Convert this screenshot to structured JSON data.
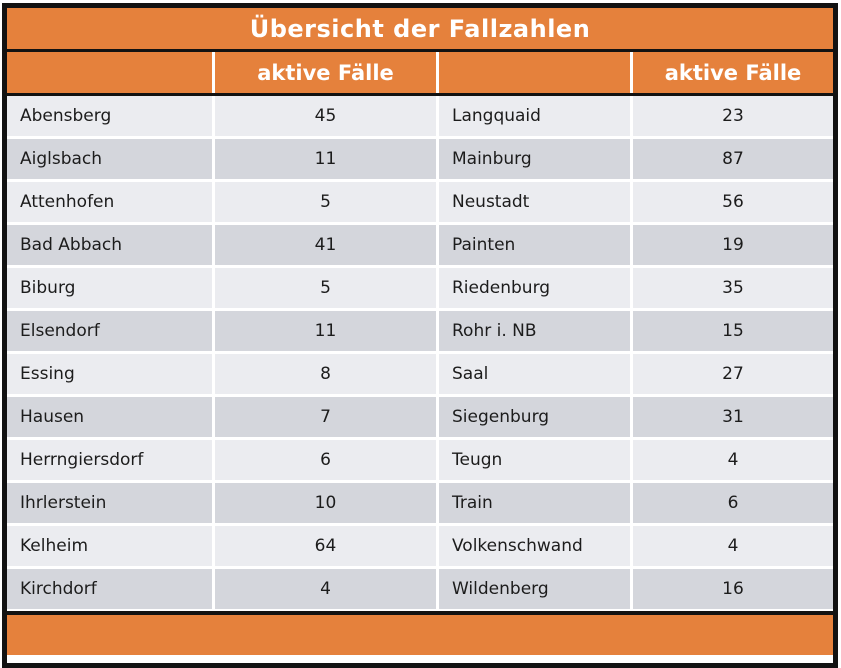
{
  "title": "Übersicht der Fallzahlen",
  "header": {
    "left_cases_label": "aktive Fälle",
    "right_cases_label": "aktive Fälle"
  },
  "colors": {
    "accent_orange": "#E5813C",
    "row_light": "#EBECF0",
    "row_dark": "#D4D6DC",
    "border_black": "#121212",
    "title_text": "#FFFFFF"
  },
  "rows": [
    [
      "Abensberg",
      "45",
      "Langquaid",
      "23"
    ],
    [
      "Aiglsbach",
      "11",
      "Mainburg",
      "87"
    ],
    [
      "Attenhofen",
      "5",
      "Neustadt",
      "56"
    ],
    [
      "Bad Abbach",
      "41",
      "Painten",
      "19"
    ],
    [
      "Biburg",
      "5",
      "Riedenburg",
      "35"
    ],
    [
      "Elsendorf",
      "11",
      "Rohr i. NB",
      "15"
    ],
    [
      "Essing",
      "8",
      "Saal",
      "27"
    ],
    [
      "Hausen",
      "7",
      "Siegenburg",
      "31"
    ],
    [
      "Herrngiersdorf",
      "6",
      "Teugn",
      "4"
    ],
    [
      "Ihrlerstein",
      "10",
      "Train",
      "6"
    ],
    [
      "Kelheim",
      "64",
      "Volkenschwand",
      "4"
    ],
    [
      "Kirchdorf",
      "4",
      "Wildenberg",
      "16"
    ]
  ],
  "chart_data": {
    "type": "table",
    "title": "Übersicht der Fallzahlen",
    "value_column_label": "aktive Fälle",
    "entries": [
      {
        "name": "Abensberg",
        "active_cases": 45
      },
      {
        "name": "Aiglsbach",
        "active_cases": 11
      },
      {
        "name": "Attenhofen",
        "active_cases": 5
      },
      {
        "name": "Bad Abbach",
        "active_cases": 41
      },
      {
        "name": "Biburg",
        "active_cases": 5
      },
      {
        "name": "Elsendorf",
        "active_cases": 11
      },
      {
        "name": "Essing",
        "active_cases": 8
      },
      {
        "name": "Hausen",
        "active_cases": 7
      },
      {
        "name": "Herrngiersdorf",
        "active_cases": 6
      },
      {
        "name": "Ihrlerstein",
        "active_cases": 10
      },
      {
        "name": "Kelheim",
        "active_cases": 64
      },
      {
        "name": "Kirchdorf",
        "active_cases": 4
      },
      {
        "name": "Langquaid",
        "active_cases": 23
      },
      {
        "name": "Mainburg",
        "active_cases": 87
      },
      {
        "name": "Neustadt",
        "active_cases": 56
      },
      {
        "name": "Painten",
        "active_cases": 19
      },
      {
        "name": "Riedenburg",
        "active_cases": 35
      },
      {
        "name": "Rohr i. NB",
        "active_cases": 15
      },
      {
        "name": "Saal",
        "active_cases": 27
      },
      {
        "name": "Siegenburg",
        "active_cases": 31
      },
      {
        "name": "Teugn",
        "active_cases": 4
      },
      {
        "name": "Train",
        "active_cases": 6
      },
      {
        "name": "Volkenschwand",
        "active_cases": 4
      },
      {
        "name": "Wildenberg",
        "active_cases": 16
      }
    ]
  }
}
